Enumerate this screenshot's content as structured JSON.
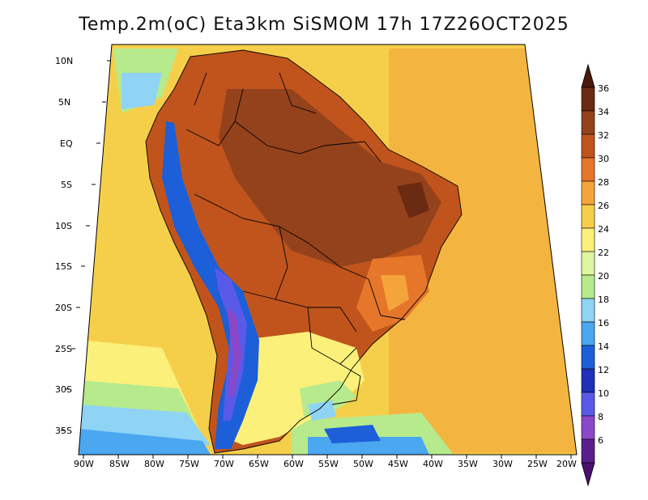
{
  "title": "Temp.2m(oC) Eta3km SiSMOM 17h 17Z26OCT2025",
  "lat_labels": [
    "10N",
    "5N",
    "EQ",
    "5S",
    "10S",
    "15S",
    "20S",
    "25S",
    "30S",
    "35S"
  ],
  "lon_labels": [
    "90W",
    "85W",
    "80W",
    "75W",
    "70W",
    "65W",
    "60W",
    "55W",
    "50W",
    "45W",
    "40W",
    "35W",
    "30W",
    "25W",
    "20W"
  ],
  "colorbar": {
    "labels": [
      "36",
      "34",
      "32",
      "30",
      "28",
      "26",
      "24",
      "22",
      "20",
      "18",
      "16",
      "14",
      "12",
      "10",
      "8",
      "6"
    ],
    "colors": [
      "#6b2a12",
      "#94421c",
      "#c0541c",
      "#e6762a",
      "#f4a43a",
      "#f6cf4a",
      "#fbf07a",
      "#dff5a0",
      "#b6ea8c",
      "#8fd3f5",
      "#4aa7f0",
      "#1c5fd8",
      "#2030b8",
      "#5a5ae8",
      "#8a48c8",
      "#5a1f8c"
    ],
    "top_color": "#4a1a0a",
    "bottom_color": "#4a1070"
  },
  "colors": {
    "ocean_warm": "#f6cf4a",
    "ocean_mid": "#fbf07a",
    "ocean_cool": "#b6ea8c",
    "land_hot": "#c0541c",
    "land_very_hot": "#94421c",
    "andes": "#1c5fd8",
    "outline": "#000000"
  }
}
